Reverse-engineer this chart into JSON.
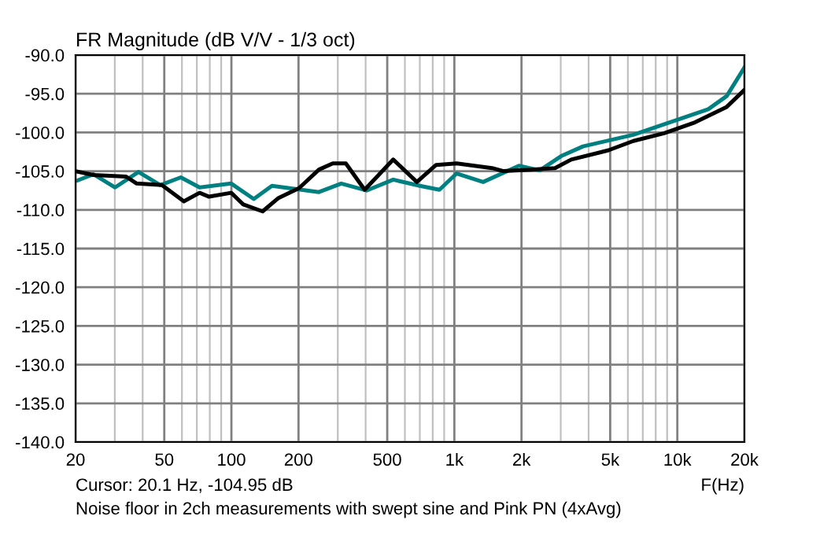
{
  "chart_data": {
    "type": "line",
    "title": "FR Magnitude (dB V/V - 1/3 oct)",
    "xlabel": "F(Hz)",
    "annotations": [
      "Cursor: 20.1 Hz, -104.95 dB",
      "Noise floor in 2ch measurements with swept sine and Pink PN (4xAvg)"
    ],
    "log": "x",
    "grid": true,
    "marker": "none",
    "line_style": "solid",
    "xlim": [
      20,
      20000
    ],
    "ylim": [
      -140,
      -90
    ],
    "xticks": [
      {
        "value": 20,
        "label": "20"
      },
      {
        "value": 30,
        "label": null
      },
      {
        "value": 40,
        "label": null
      },
      {
        "value": 50,
        "label": "50"
      },
      {
        "value": 60,
        "label": null
      },
      {
        "value": 70,
        "label": null
      },
      {
        "value": 80,
        "label": null
      },
      {
        "value": 90,
        "label": null
      },
      {
        "value": 100,
        "label": "100"
      },
      {
        "value": 200,
        "label": "200"
      },
      {
        "value": 300,
        "label": null
      },
      {
        "value": 400,
        "label": null
      },
      {
        "value": 500,
        "label": "500"
      },
      {
        "value": 600,
        "label": null
      },
      {
        "value": 700,
        "label": null
      },
      {
        "value": 800,
        "label": null
      },
      {
        "value": 900,
        "label": null
      },
      {
        "value": 1000,
        "label": "1k"
      },
      {
        "value": 2000,
        "label": "2k"
      },
      {
        "value": 3000,
        "label": null
      },
      {
        "value": 4000,
        "label": null
      },
      {
        "value": 5000,
        "label": "5k"
      },
      {
        "value": 6000,
        "label": null
      },
      {
        "value": 7000,
        "label": null
      },
      {
        "value": 8000,
        "label": null
      },
      {
        "value": 9000,
        "label": null
      },
      {
        "value": 10000,
        "label": "10k"
      },
      {
        "value": 20000,
        "label": "20k"
      }
    ],
    "yticks": [
      {
        "value": -90,
        "label": "-90.0"
      },
      {
        "value": -95,
        "label": "-95.0"
      },
      {
        "value": -100,
        "label": "-100.0"
      },
      {
        "value": -105,
        "label": "-105.0"
      },
      {
        "value": -110,
        "label": "-110.0"
      },
      {
        "value": -115,
        "label": "-115.0"
      },
      {
        "value": -120,
        "label": "-120.0"
      },
      {
        "value": -125,
        "label": "-125.0"
      },
      {
        "value": -130,
        "label": "-130.0"
      },
      {
        "value": -135,
        "label": "-135.0"
      },
      {
        "value": -140,
        "label": "-140.0"
      }
    ],
    "series": [
      {
        "color": "#008080",
        "x": [
          20,
          24.1,
          30.1,
          38.3,
          48,
          59.3,
          72,
          99.8,
          126,
          152,
          247,
          311,
          404,
          532,
          700,
          857,
          1024,
          1346,
          1948,
          2415,
          3036,
          3775,
          6345,
          9920,
          13760,
          16650,
          20000
        ],
        "values": [
          -106.3,
          -105.4,
          -107.1,
          -105.1,
          -106.8,
          -105.8,
          -107.1,
          -106.6,
          -108.6,
          -106.9,
          -107.7,
          -106.6,
          -107.5,
          -106.1,
          -106.9,
          -107.4,
          -105.3,
          -106.4,
          -104.3,
          -104.9,
          -103,
          -101.8,
          -100.3,
          -98.4,
          -97,
          -95.3,
          -91.6
        ]
      },
      {
        "color": "#000000",
        "x": [
          20,
          24.1,
          33.7,
          37.6,
          48.8,
          61.2,
          72,
          79.4,
          99.8,
          113,
          138,
          162,
          201,
          247,
          285,
          326,
          396,
          532,
          679,
          828,
          1024,
          1476,
          1662,
          2196,
          2827,
          3342,
          4914,
          6345,
          8730,
          12000,
          16650,
          20000
        ],
        "values": [
          -105,
          -105.5,
          -105.7,
          -106.6,
          -106.8,
          -108.9,
          -107.8,
          -108.3,
          -107.8,
          -109.3,
          -110.2,
          -108.5,
          -107.2,
          -104.8,
          -104,
          -104,
          -107.4,
          -103.5,
          -106.4,
          -104.2,
          -104,
          -104.6,
          -105,
          -104.8,
          -104.6,
          -103.5,
          -102.3,
          -101.1,
          -100.1,
          -98.7,
          -96.7,
          -94.5
        ]
      }
    ]
  }
}
